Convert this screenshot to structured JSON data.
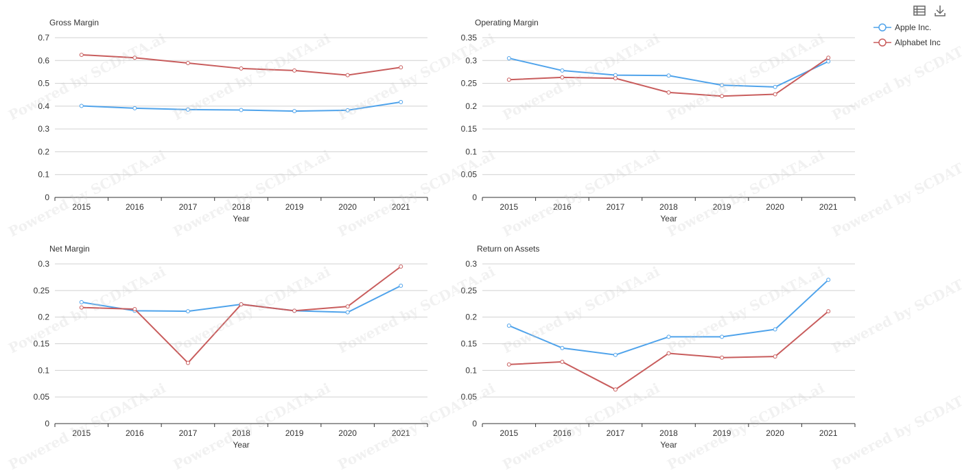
{
  "watermark": "Powered by SCDATA.ai",
  "toolbox": {
    "data_view_icon": "data-view-icon",
    "download_icon": "download-icon"
  },
  "legend": [
    {
      "name": "Apple Inc.",
      "color": "#4fa3eb"
    },
    {
      "name": "Alphabet Inc",
      "color": "#c85c5c"
    }
  ],
  "chart_data": [
    {
      "type": "line",
      "title": "Gross Margin",
      "xlabel": "Year",
      "ylabel": "",
      "categories": [
        "2015",
        "2016",
        "2017",
        "2018",
        "2019",
        "2020",
        "2021"
      ],
      "ylim": [
        0,
        0.7
      ],
      "yticks": [
        "0",
        "0.1",
        "0.2",
        "0.3",
        "0.4",
        "0.5",
        "0.6",
        "0.7"
      ],
      "grid": true,
      "series": [
        {
          "name": "Apple Inc.",
          "values": [
            0.401,
            0.391,
            0.385,
            0.383,
            0.378,
            0.382,
            0.418
          ]
        },
        {
          "name": "Alphabet Inc",
          "values": [
            0.625,
            0.612,
            0.589,
            0.565,
            0.556,
            0.536,
            0.57
          ]
        }
      ]
    },
    {
      "type": "line",
      "title": "Operating Margin",
      "xlabel": "Year",
      "ylabel": "",
      "categories": [
        "2015",
        "2016",
        "2017",
        "2018",
        "2019",
        "2020",
        "2021"
      ],
      "ylim": [
        0,
        0.35
      ],
      "yticks": [
        "0",
        "0.05",
        "0.1",
        "0.15",
        "0.2",
        "0.25",
        "0.3",
        "0.35"
      ],
      "grid": true,
      "series": [
        {
          "name": "Apple Inc.",
          "values": [
            0.305,
            0.278,
            0.268,
            0.267,
            0.246,
            0.242,
            0.298
          ]
        },
        {
          "name": "Alphabet Inc",
          "values": [
            0.258,
            0.263,
            0.261,
            0.23,
            0.222,
            0.226,
            0.306
          ]
        }
      ]
    },
    {
      "type": "line",
      "title": "Net Margin",
      "xlabel": "Year",
      "ylabel": "",
      "categories": [
        "2015",
        "2016",
        "2017",
        "2018",
        "2019",
        "2020",
        "2021"
      ],
      "ylim": [
        0,
        0.3
      ],
      "yticks": [
        "0",
        "0.05",
        "0.1",
        "0.15",
        "0.2",
        "0.25",
        "0.3"
      ],
      "grid": true,
      "series": [
        {
          "name": "Apple Inc.",
          "values": [
            0.228,
            0.212,
            0.211,
            0.224,
            0.212,
            0.209,
            0.259
          ]
        },
        {
          "name": "Alphabet Inc",
          "values": [
            0.218,
            0.215,
            0.114,
            0.224,
            0.212,
            0.22,
            0.295
          ]
        }
      ]
    },
    {
      "type": "line",
      "title": "Return on Assets",
      "xlabel": "Year",
      "ylabel": "",
      "categories": [
        "2015",
        "2016",
        "2017",
        "2018",
        "2019",
        "2020",
        "2021"
      ],
      "ylim": [
        0,
        0.3
      ],
      "yticks": [
        "0",
        "0.05",
        "0.1",
        "0.15",
        "0.2",
        "0.25",
        "0.3"
      ],
      "grid": true,
      "series": [
        {
          "name": "Apple Inc.",
          "values": [
            0.184,
            0.142,
            0.129,
            0.163,
            0.163,
            0.177,
            0.27
          ]
        },
        {
          "name": "Alphabet Inc",
          "values": [
            0.111,
            0.116,
            0.064,
            0.132,
            0.124,
            0.126,
            0.211
          ]
        }
      ]
    }
  ]
}
